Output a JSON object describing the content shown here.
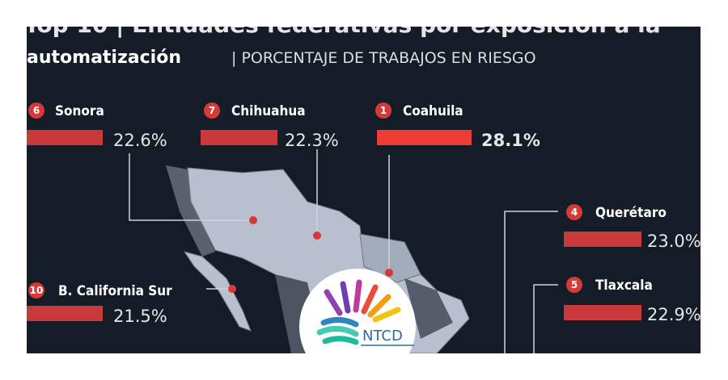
{
  "header": {
    "title": "Top 10 | Entidades federativas por exposición a la",
    "subtitle_bold": "automatización",
    "subtitle": "| PORCENTAJE DE TRABAJOS EN RIESGO"
  },
  "items": [
    {
      "rank": "6",
      "name": "Sonora",
      "value_label": "22.6%"
    },
    {
      "rank": "7",
      "name": "Chihuahua",
      "value_label": "22.3%"
    },
    {
      "rank": "1",
      "name": "Coahuila",
      "value_label": "28.1%"
    },
    {
      "rank": "4",
      "name": "Querétaro",
      "value_label": "23.0%"
    },
    {
      "rank": "5",
      "name": "Tlaxcala",
      "value_label": "22.9%"
    },
    {
      "rank": "10",
      "name": "B. California Sur",
      "value_label": "21.5%"
    }
  ],
  "logo": {
    "text": "NTCD"
  }
}
